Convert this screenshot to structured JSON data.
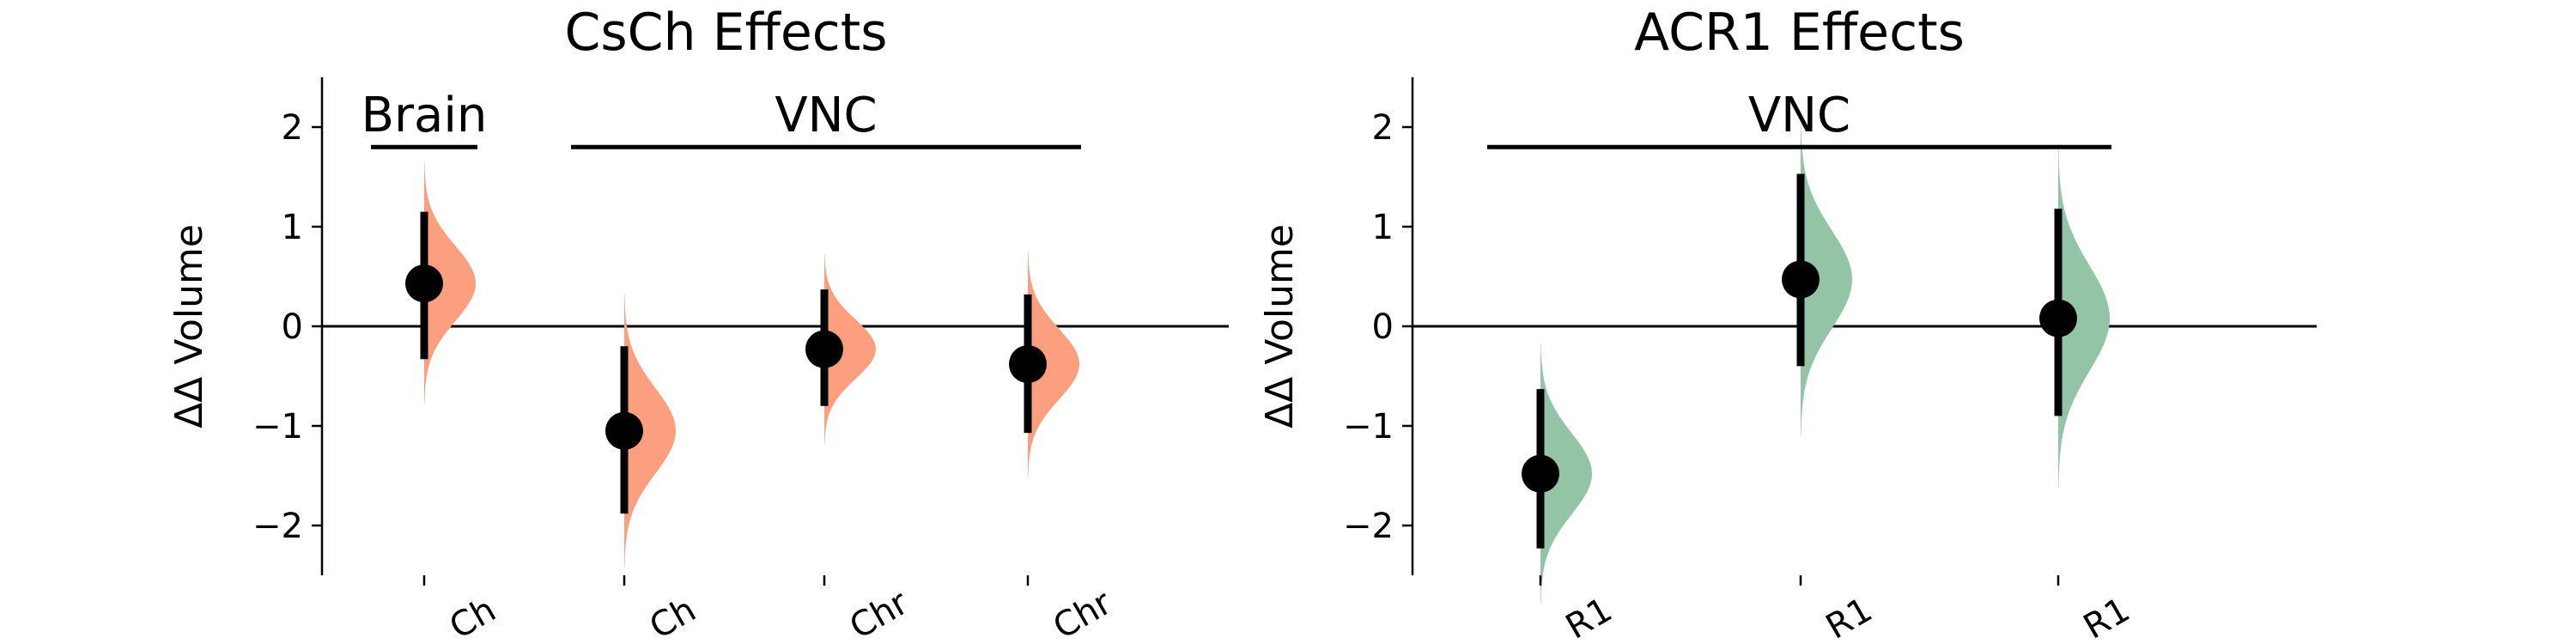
{
  "chart_data": [
    {
      "type": "interval",
      "title": "CsCh Effects",
      "ylabel": "ΔΔ Volume",
      "categories": [
        "Ch",
        "Ch",
        "Chr",
        "Chr"
      ],
      "values": [
        0.43,
        -1.05,
        -0.23,
        -0.38
      ],
      "ci_low": [
        -0.33,
        -1.88,
        -0.8,
        -1.07
      ],
      "ci_high": [
        1.15,
        -0.2,
        0.37,
        0.32
      ],
      "color": "#fc9f7e",
      "ylim": [
        -2.5,
        2.5
      ],
      "yticks": [
        {
          "value": -2,
          "label": "−2"
        },
        {
          "value": -1,
          "label": "−1"
        },
        0,
        1,
        2
      ],
      "reference_line": 0,
      "brackets": [
        {
          "label": "Brain",
          "start": 0,
          "end": 0,
          "y": 1.8
        },
        {
          "label": "VNC",
          "start": 1,
          "end": 3,
          "y": 1.8
        }
      ]
    },
    {
      "type": "interval",
      "title": "ACR1 Effects",
      "ylabel": "ΔΔ Volume",
      "categories": [
        "R1",
        "R1",
        "R1"
      ],
      "values": [
        -1.48,
        0.47,
        0.08
      ],
      "ci_low": [
        -2.23,
        -0.4,
        -0.9
      ],
      "ci_high": [
        -0.63,
        1.53,
        1.18
      ],
      "color": "#93c4a6",
      "ylim": [
        -2.5,
        2.5
      ],
      "yticks": [
        {
          "value": -2,
          "label": "−2"
        },
        {
          "value": -1,
          "label": "−1"
        },
        0,
        1,
        2
      ],
      "reference_line": 0,
      "brackets": [
        {
          "label": "VNC",
          "start": 0,
          "end": 2,
          "y": 1.8
        }
      ]
    }
  ]
}
